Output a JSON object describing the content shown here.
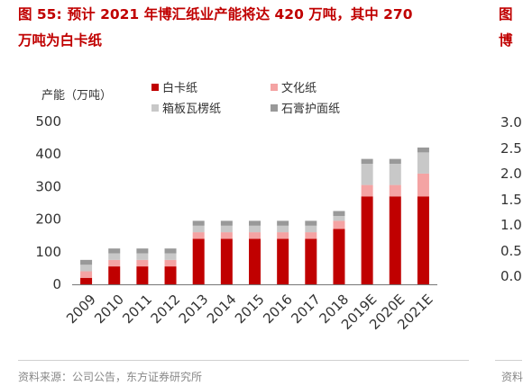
{
  "figure": {
    "label": "图 55:",
    "title_line1": "预计 2021 年博汇纸业产能将达 420 万吨，其中 270",
    "title_line2": "万吨为白卡纸",
    "source": "资料来源：公司公告，东方证券研究所"
  },
  "next_panel": {
    "title_line1": "图",
    "title_line2": "博",
    "axis_ticks": [
      "3.0",
      "2.5",
      "2.0",
      "1.5",
      "1.0",
      "0.5",
      "0.0"
    ],
    "source": "资料"
  },
  "chart_data": {
    "type": "bar",
    "stacked": true,
    "ylabel": "产能（万吨）",
    "ylim": [
      0,
      500
    ],
    "yticks": [
      0,
      100,
      200,
      300,
      400,
      500
    ],
    "legend_position": "top",
    "categories": [
      "2009",
      "2010",
      "2011",
      "2012",
      "2013",
      "2014",
      "2015",
      "2016",
      "2017",
      "2018",
      "2019E",
      "2020E",
      "2021E"
    ],
    "series": [
      {
        "name": "白卡纸",
        "color": "#c00000",
        "values": [
          20,
          55,
          55,
          55,
          140,
          140,
          140,
          140,
          140,
          170,
          270,
          270,
          270
        ]
      },
      {
        "name": "文化纸",
        "color": "#f4a3a3",
        "values": [
          20,
          20,
          20,
          20,
          20,
          20,
          20,
          20,
          20,
          25,
          35,
          35,
          70
        ]
      },
      {
        "name": "箱板瓦楞纸",
        "color": "#c8c8c8",
        "values": [
          20,
          20,
          20,
          20,
          20,
          20,
          20,
          20,
          20,
          15,
          65,
          65,
          65
        ]
      },
      {
        "name": "石膏护面纸",
        "color": "#999999",
        "values": [
          15,
          15,
          15,
          15,
          15,
          15,
          15,
          15,
          15,
          15,
          15,
          15,
          15
        ]
      }
    ]
  }
}
